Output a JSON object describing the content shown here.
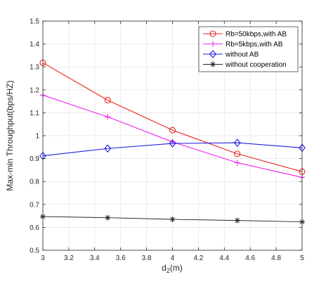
{
  "chart_data": {
    "type": "line",
    "title": "",
    "xlabel": {
      "base": "d",
      "sub": "2",
      "rest": "(m)"
    },
    "ylabel": "Max-min Throughput(bps/HZ)",
    "xlim": [
      3,
      5
    ],
    "ylim": [
      0.5,
      1.5
    ],
    "xticks": [
      3,
      3.2,
      3.4,
      3.6,
      3.8,
      4,
      4.2,
      4.4,
      4.6,
      4.8,
      5
    ],
    "xtick_labels": [
      "3",
      "3.2",
      "3.4",
      "3.6",
      "3.8",
      "4",
      "4.2",
      "4.4",
      "4.6",
      "4.8",
      "5"
    ],
    "yticks": [
      0.5,
      0.6,
      0.7,
      0.8,
      0.9,
      1.0,
      1.1,
      1.2,
      1.3,
      1.4,
      1.5
    ],
    "ytick_labels": [
      "0.5",
      "0.6",
      "0.7",
      "0.8",
      "0.9",
      "1",
      "1.1",
      "1.2",
      "1.3",
      "1.4",
      "1.5"
    ],
    "grid": true,
    "legend_position": "top-right",
    "x": [
      3,
      3.5,
      4,
      4.5,
      5
    ],
    "series": [
      {
        "name": "Rb=50kbps,with AB",
        "color": "#e8221e",
        "marker": "circle",
        "values": [
          1.318,
          1.155,
          1.024,
          0.921,
          0.843
        ]
      },
      {
        "name": "Rb=5kbps,with AB",
        "color": "#ee22ee",
        "marker": "plus",
        "values": [
          1.177,
          1.082,
          0.973,
          0.882,
          0.818
        ]
      },
      {
        "name": "without AB",
        "color": "#1f1fe0",
        "marker": "diamond",
        "values": [
          0.912,
          0.944,
          0.966,
          0.969,
          0.947
        ]
      },
      {
        "name": "without cooperation",
        "color": "#222222",
        "marker": "asterisk",
        "values": [
          0.647,
          0.642,
          0.635,
          0.63,
          0.624
        ]
      }
    ]
  }
}
